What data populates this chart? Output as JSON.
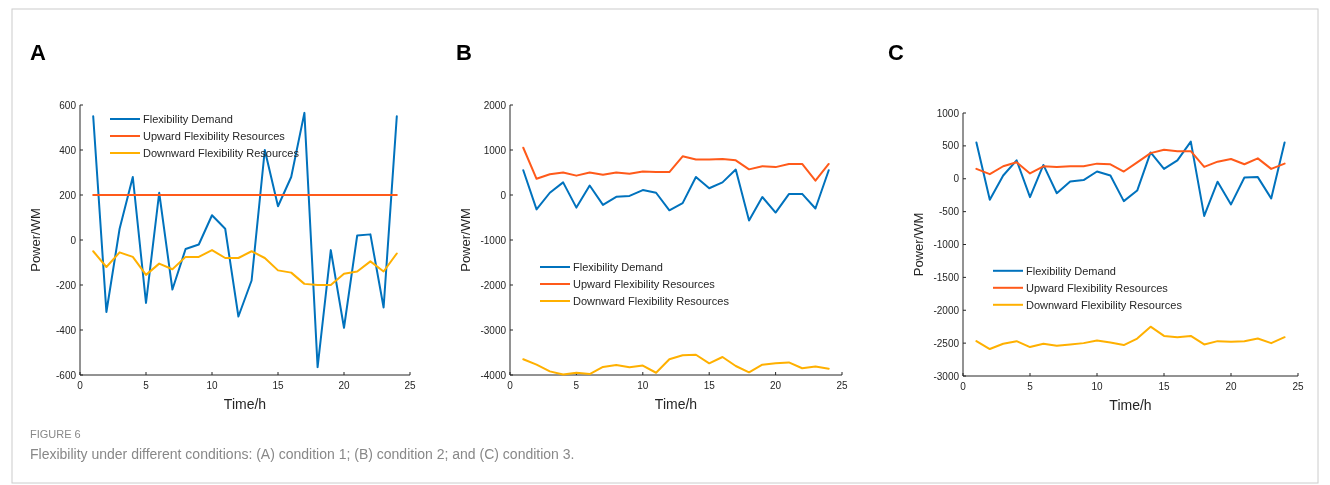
{
  "chart_data": [
    {
      "type": "line",
      "title": "A",
      "xlabel": "Time/h",
      "ylabel": "Power/WM",
      "x": [
        1,
        2,
        3,
        4,
        5,
        6,
        7,
        8,
        9,
        10,
        11,
        12,
        13,
        14,
        15,
        16,
        17,
        18,
        19,
        20,
        21,
        22,
        23,
        24
      ],
      "xlim": [
        0,
        25
      ],
      "xticks": [
        0,
        5,
        10,
        15,
        20,
        25
      ],
      "ylim": [
        -600,
        600
      ],
      "yticks": [
        -600,
        -400,
        -200,
        0,
        200,
        400,
        600
      ],
      "legend": "top left",
      "grid": false,
      "series": [
        {
          "name": "Flexibility Demand",
          "color": "#0072bd",
          "values": [
            550,
            -320,
            50,
            280,
            -280,
            210,
            -220,
            -40,
            -20,
            110,
            50,
            -340,
            -180,
            400,
            150,
            280,
            565,
            -565,
            -45,
            -390,
            20,
            25,
            -300,
            550
          ]
        },
        {
          "name": "Upward Flexibility Resources",
          "color": "#ff5a1a",
          "values": [
            200,
            200,
            200,
            200,
            200,
            200,
            200,
            200,
            200,
            200,
            200,
            200,
            200,
            200,
            200,
            200,
            200,
            200,
            200,
            200,
            200,
            200,
            200,
            200
          ]
        },
        {
          "name": "Downward Flexibility Resources",
          "color": "#ffb000",
          "values": [
            -50,
            -120,
            -55,
            -75,
            -155,
            -105,
            -130,
            -75,
            -75,
            -45,
            -80,
            -80,
            -50,
            -80,
            -135,
            -145,
            -195,
            -200,
            -200,
            -150,
            -140,
            -95,
            -140,
            -60
          ]
        }
      ],
      "annotations": [
        "FIGURE 6",
        "Flexibility under different conditions: (A) condition 1; (B) condition 2; and (C) condition 3."
      ]
    },
    {
      "type": "line",
      "title": "B",
      "xlabel": "Time/h",
      "ylabel": "Power/WM",
      "x": [
        1,
        2,
        3,
        4,
        5,
        6,
        7,
        8,
        9,
        10,
        11,
        12,
        13,
        14,
        15,
        16,
        17,
        18,
        19,
        20,
        21,
        22,
        23,
        24
      ],
      "xlim": [
        0,
        25
      ],
      "xticks": [
        0,
        5,
        10,
        15,
        20,
        25
      ],
      "ylim": [
        -4000,
        2000
      ],
      "yticks": [
        -4000,
        -3000,
        -2000,
        -1000,
        0,
        1000,
        2000
      ],
      "legend": "left",
      "grid": false,
      "series": [
        {
          "name": "Flexibility Demand",
          "color": "#0072bd",
          "values": [
            550,
            -320,
            50,
            280,
            -280,
            210,
            -220,
            -40,
            -20,
            110,
            50,
            -340,
            -180,
            400,
            150,
            280,
            565,
            -565,
            -45,
            -390,
            20,
            25,
            -300,
            550
          ]
        },
        {
          "name": "Upward Flexibility Resources",
          "color": "#ff5a1a",
          "values": [
            1050,
            360,
            460,
            500,
            430,
            500,
            450,
            500,
            470,
            520,
            510,
            510,
            860,
            790,
            790,
            800,
            770,
            570,
            640,
            620,
            690,
            690,
            320,
            690
          ]
        },
        {
          "name": "Downward Flexibility Resources",
          "color": "#ffb000",
          "values": [
            -3650,
            -3770,
            -3920,
            -3990,
            -3950,
            -3980,
            -3820,
            -3780,
            -3830,
            -3790,
            -3950,
            -3650,
            -3560,
            -3550,
            -3740,
            -3600,
            -3800,
            -3940,
            -3770,
            -3740,
            -3720,
            -3850,
            -3810,
            -3860
          ]
        }
      ]
    },
    {
      "type": "line",
      "title": "C",
      "xlabel": "Time/h",
      "ylabel": "Power/WM",
      "x": [
        1,
        2,
        3,
        4,
        5,
        6,
        7,
        8,
        9,
        10,
        11,
        12,
        13,
        14,
        15,
        16,
        17,
        18,
        19,
        20,
        21,
        22,
        23,
        24
      ],
      "xlim": [
        0,
        25
      ],
      "xticks": [
        0,
        5,
        10,
        15,
        20,
        25
      ],
      "ylim": [
        -3000,
        1000
      ],
      "yticks": [
        -3000,
        -2500,
        -2000,
        -1500,
        -1000,
        -500,
        0,
        500,
        1000
      ],
      "legend": "left",
      "grid": false,
      "series": [
        {
          "name": "Flexibility Demand",
          "color": "#0072bd",
          "values": [
            550,
            -320,
            50,
            280,
            -280,
            210,
            -220,
            -40,
            -20,
            110,
            50,
            -340,
            -180,
            400,
            150,
            280,
            565,
            -565,
            -45,
            -390,
            20,
            25,
            -300,
            550
          ]
        },
        {
          "name": "Upward Flexibility Resources",
          "color": "#ff5a1a",
          "values": [
            150,
            70,
            190,
            250,
            80,
            190,
            180,
            190,
            190,
            230,
            220,
            110,
            250,
            390,
            440,
            420,
            420,
            180,
            260,
            300,
            220,
            310,
            150,
            230
          ]
        },
        {
          "name": "Downward Flexibility Resources",
          "color": "#ffb000",
          "values": [
            -2470,
            -2590,
            -2510,
            -2470,
            -2560,
            -2510,
            -2540,
            -2520,
            -2500,
            -2460,
            -2490,
            -2530,
            -2430,
            -2250,
            -2390,
            -2410,
            -2390,
            -2520,
            -2470,
            -2480,
            -2470,
            -2430,
            -2500,
            -2410
          ]
        }
      ]
    }
  ]
}
